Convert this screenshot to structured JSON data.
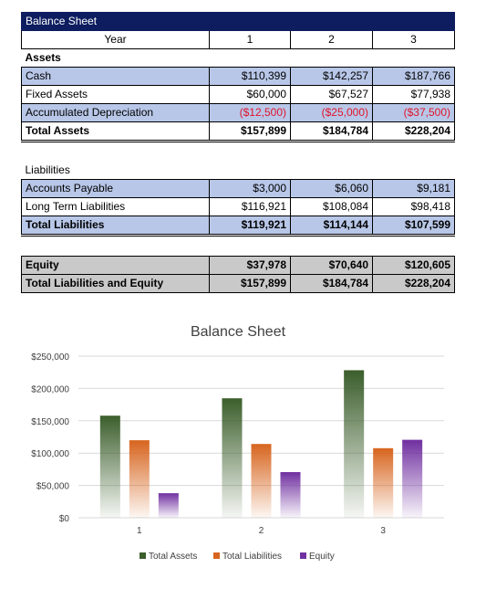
{
  "sheet": {
    "title": "Balance Sheet",
    "year_label": "Year",
    "years": [
      "1",
      "2",
      "3"
    ],
    "assets_header": "Assets",
    "assets": [
      {
        "label": "Cash",
        "values": [
          "$110,399",
          "$142,257",
          "$187,766"
        ]
      },
      {
        "label": "Fixed Assets",
        "values": [
          "$60,000",
          "$67,527",
          "$77,938"
        ]
      },
      {
        "label": "Accumulated Depreciation",
        "values": [
          "($12,500)",
          "($25,000)",
          "($37,500)"
        ]
      }
    ],
    "total_assets": {
      "label": "Total Assets",
      "values": [
        "$157,899",
        "$184,784",
        "$228,204"
      ]
    },
    "liabilities_header": "Liabilities",
    "liabilities": [
      {
        "label": "Accounts Payable",
        "values": [
          "$3,000",
          "$6,060",
          "$9,181"
        ]
      },
      {
        "label": "Long Term Liabilities",
        "values": [
          "$116,921",
          "$108,084",
          "$98,418"
        ]
      }
    ],
    "total_liabilities": {
      "label": "Total Liabilities",
      "values": [
        "$119,921",
        "$114,144",
        "$107,599"
      ]
    },
    "equity": {
      "label": "Equity",
      "values": [
        "$37,978",
        "$70,640",
        "$120,605"
      ]
    },
    "total_le": {
      "label": "Total Liabilities and Equity",
      "values": [
        "$157,899",
        "$184,784",
        "$228,204"
      ]
    }
  },
  "chart_data": {
    "type": "bar",
    "title": "Balance Sheet",
    "categories": [
      "1",
      "2",
      "3"
    ],
    "series": [
      {
        "name": "Total Assets",
        "values": [
          157899,
          184784,
          228204
        ],
        "color": "#3b5e2b"
      },
      {
        "name": "Total Liabilities",
        "values": [
          119921,
          114144,
          107599
        ],
        "color": "#d7651f"
      },
      {
        "name": "Equity",
        "values": [
          37978,
          70640,
          120605
        ],
        "color": "#7030a0"
      }
    ],
    "ylim": [
      0,
      250000
    ],
    "yticks": [
      0,
      50000,
      100000,
      150000,
      200000,
      250000
    ],
    "ytick_labels": [
      "$0",
      "$50,000",
      "$100,000",
      "$150,000",
      "$200,000",
      "$250,000"
    ],
    "grid": true,
    "legend": "bottom"
  }
}
